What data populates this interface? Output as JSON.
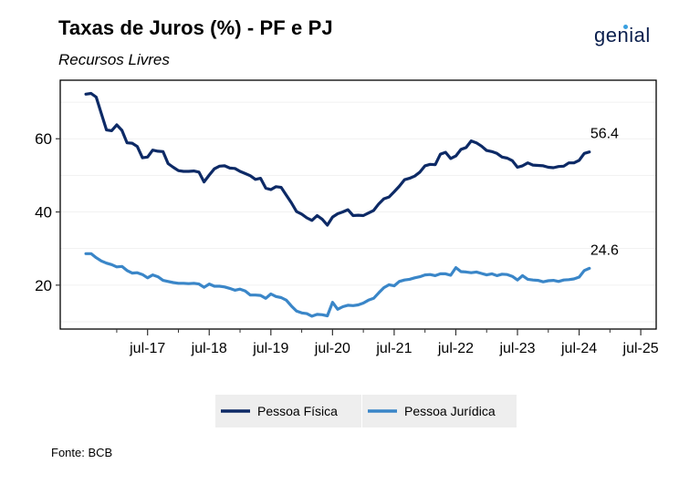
{
  "header": {
    "title": "Taxas de Juros (%) - PF e PJ",
    "subtitle": "Recursos Livres",
    "logo_text": "genial"
  },
  "footer": {
    "source": "Fonte: BCB"
  },
  "chart_data": {
    "type": "line",
    "title": "Taxas de Juros (%) - PF e PJ",
    "subtitle": "Recursos Livres",
    "xlabel": "",
    "ylabel": "",
    "x_tick_labels": [
      "jul-17",
      "jul-18",
      "jul-19",
      "jul-20",
      "jul-21",
      "jul-22",
      "jul-23",
      "jul-24",
      "jul-25"
    ],
    "y_tick_labels": [
      "20",
      "40",
      "60"
    ],
    "ylim": [
      8,
      76
    ],
    "xlim": [
      "2016-02",
      "2025-10"
    ],
    "grid": "horizontal, light",
    "legend": "bottom",
    "end_labels": [
      "56.4",
      "24.6"
    ],
    "series": [
      {
        "name": "Pessoa Física",
        "color": "#0d2a66",
        "points": [
          [
            "2016-07",
            72.2
          ],
          [
            "2016-08",
            72.4
          ],
          [
            "2016-09",
            71.4
          ],
          [
            "2016-10",
            66.9
          ],
          [
            "2016-11",
            62.4
          ],
          [
            "2016-12",
            62.2
          ],
          [
            "2017-01",
            63.8
          ],
          [
            "2017-02",
            62.3
          ],
          [
            "2017-03",
            58.9
          ],
          [
            "2017-04",
            58.8
          ],
          [
            "2017-05",
            57.9
          ],
          [
            "2017-06",
            54.8
          ],
          [
            "2017-07",
            55.0
          ],
          [
            "2017-08",
            56.9
          ],
          [
            "2017-09",
            56.6
          ],
          [
            "2017-10",
            56.5
          ],
          [
            "2017-11",
            53.2
          ],
          [
            "2017-12",
            52.2
          ],
          [
            "2018-01",
            51.3
          ],
          [
            "2018-02",
            51.1
          ],
          [
            "2018-03",
            51.1
          ],
          [
            "2018-04",
            51.2
          ],
          [
            "2018-05",
            50.9
          ],
          [
            "2018-06",
            48.2
          ],
          [
            "2018-07",
            50.1
          ],
          [
            "2018-08",
            51.8
          ],
          [
            "2018-09",
            52.5
          ],
          [
            "2018-10",
            52.6
          ],
          [
            "2018-11",
            52.0
          ],
          [
            "2018-12",
            51.9
          ],
          [
            "2019-01",
            51.1
          ],
          [
            "2019-02",
            50.5
          ],
          [
            "2019-03",
            49.9
          ],
          [
            "2019-04",
            48.9
          ],
          [
            "2019-05",
            49.2
          ],
          [
            "2019-06",
            46.5
          ],
          [
            "2019-07",
            46.1
          ],
          [
            "2019-08",
            46.9
          ],
          [
            "2019-09",
            46.7
          ],
          [
            "2019-10",
            44.6
          ],
          [
            "2019-11",
            42.5
          ],
          [
            "2019-12",
            40.1
          ],
          [
            "2020-01",
            39.4
          ],
          [
            "2020-02",
            38.4
          ],
          [
            "2020-03",
            37.7
          ],
          [
            "2020-04",
            39.0
          ],
          [
            "2020-05",
            38.0
          ],
          [
            "2020-06",
            36.4
          ],
          [
            "2020-07",
            38.6
          ],
          [
            "2020-08",
            39.5
          ],
          [
            "2020-09",
            40.0
          ],
          [
            "2020-10",
            40.6
          ],
          [
            "2020-11",
            39.0
          ],
          [
            "2020-12",
            39.1
          ],
          [
            "2021-01",
            39.0
          ],
          [
            "2021-02",
            39.7
          ],
          [
            "2021-03",
            40.4
          ],
          [
            "2021-04",
            42.2
          ],
          [
            "2021-05",
            43.6
          ],
          [
            "2021-06",
            44.1
          ],
          [
            "2021-07",
            45.5
          ],
          [
            "2021-08",
            47.0
          ],
          [
            "2021-09",
            48.8
          ],
          [
            "2021-10",
            49.2
          ],
          [
            "2021-11",
            49.8
          ],
          [
            "2021-12",
            50.9
          ],
          [
            "2022-01",
            52.6
          ],
          [
            "2022-02",
            53.0
          ],
          [
            "2022-03",
            52.9
          ],
          [
            "2022-04",
            55.8
          ],
          [
            "2022-05",
            56.3
          ],
          [
            "2022-06",
            54.6
          ],
          [
            "2022-07",
            55.3
          ],
          [
            "2022-08",
            57.1
          ],
          [
            "2022-09",
            57.6
          ],
          [
            "2022-10",
            59.4
          ],
          [
            "2022-11",
            58.9
          ],
          [
            "2022-12",
            58.0
          ],
          [
            "2023-01",
            56.8
          ],
          [
            "2023-02",
            56.5
          ],
          [
            "2023-03",
            56.0
          ],
          [
            "2023-04",
            55.0
          ],
          [
            "2023-05",
            54.7
          ],
          [
            "2023-06",
            54.0
          ],
          [
            "2023-07",
            52.2
          ],
          [
            "2023-08",
            52.6
          ],
          [
            "2023-09",
            53.4
          ],
          [
            "2023-10",
            52.8
          ],
          [
            "2023-11",
            52.7
          ],
          [
            "2023-12",
            52.6
          ],
          [
            "2024-01",
            52.2
          ],
          [
            "2024-02",
            52.1
          ],
          [
            "2024-03",
            52.4
          ],
          [
            "2024-04",
            52.5
          ],
          [
            "2024-05",
            53.4
          ],
          [
            "2024-06",
            53.4
          ],
          [
            "2024-07",
            54.1
          ],
          [
            "2024-08",
            56.0
          ],
          [
            "2024-09",
            56.4
          ]
        ]
      },
      {
        "name": "Pessoa Jurídica",
        "color": "#3a86c8",
        "points": [
          [
            "2016-07",
            28.6
          ],
          [
            "2016-08",
            28.6
          ],
          [
            "2016-09",
            27.5
          ],
          [
            "2016-10",
            26.6
          ],
          [
            "2016-11",
            26.0
          ],
          [
            "2016-12",
            25.6
          ],
          [
            "2017-01",
            25.0
          ],
          [
            "2017-02",
            25.1
          ],
          [
            "2017-03",
            24.0
          ],
          [
            "2017-04",
            23.3
          ],
          [
            "2017-05",
            23.4
          ],
          [
            "2017-06",
            22.9
          ],
          [
            "2017-07",
            22.0
          ],
          [
            "2017-08",
            22.8
          ],
          [
            "2017-09",
            22.3
          ],
          [
            "2017-10",
            21.3
          ],
          [
            "2017-11",
            21.0
          ],
          [
            "2017-12",
            20.7
          ],
          [
            "2018-01",
            20.5
          ],
          [
            "2018-02",
            20.5
          ],
          [
            "2018-03",
            20.4
          ],
          [
            "2018-04",
            20.5
          ],
          [
            "2018-05",
            20.3
          ],
          [
            "2018-06",
            19.4
          ],
          [
            "2018-07",
            20.3
          ],
          [
            "2018-08",
            19.7
          ],
          [
            "2018-09",
            19.7
          ],
          [
            "2018-10",
            19.5
          ],
          [
            "2018-11",
            19.1
          ],
          [
            "2018-12",
            18.6
          ],
          [
            "2019-01",
            18.9
          ],
          [
            "2019-02",
            18.4
          ],
          [
            "2019-03",
            17.3
          ],
          [
            "2019-04",
            17.3
          ],
          [
            "2019-05",
            17.2
          ],
          [
            "2019-06",
            16.4
          ],
          [
            "2019-07",
            17.6
          ],
          [
            "2019-08",
            16.9
          ],
          [
            "2019-09",
            16.6
          ],
          [
            "2019-10",
            15.9
          ],
          [
            "2019-11",
            14.3
          ],
          [
            "2019-12",
            12.9
          ],
          [
            "2020-01",
            12.4
          ],
          [
            "2020-02",
            12.2
          ],
          [
            "2020-03",
            11.5
          ],
          [
            "2020-04",
            12.0
          ],
          [
            "2020-05",
            11.9
          ],
          [
            "2020-06",
            11.6
          ],
          [
            "2020-07",
            15.3
          ],
          [
            "2020-08",
            13.4
          ],
          [
            "2020-09",
            14.1
          ],
          [
            "2020-10",
            14.5
          ],
          [
            "2020-11",
            14.4
          ],
          [
            "2020-12",
            14.6
          ],
          [
            "2021-01",
            15.1
          ],
          [
            "2021-02",
            15.9
          ],
          [
            "2021-03",
            16.4
          ],
          [
            "2021-04",
            17.9
          ],
          [
            "2021-05",
            19.3
          ],
          [
            "2021-06",
            20.1
          ],
          [
            "2021-07",
            19.8
          ],
          [
            "2021-08",
            21.0
          ],
          [
            "2021-09",
            21.4
          ],
          [
            "2021-10",
            21.6
          ],
          [
            "2021-11",
            22.0
          ],
          [
            "2021-12",
            22.3
          ],
          [
            "2022-01",
            22.8
          ],
          [
            "2022-02",
            22.9
          ],
          [
            "2022-03",
            22.6
          ],
          [
            "2022-04",
            23.1
          ],
          [
            "2022-05",
            23.1
          ],
          [
            "2022-06",
            22.7
          ],
          [
            "2022-07",
            24.8
          ],
          [
            "2022-08",
            23.7
          ],
          [
            "2022-09",
            23.6
          ],
          [
            "2022-10",
            23.4
          ],
          [
            "2022-11",
            23.6
          ],
          [
            "2022-12",
            23.2
          ],
          [
            "2023-01",
            22.8
          ],
          [
            "2023-02",
            23.1
          ],
          [
            "2023-03",
            22.6
          ],
          [
            "2023-04",
            23.0
          ],
          [
            "2023-05",
            22.9
          ],
          [
            "2023-06",
            22.4
          ],
          [
            "2023-07",
            21.4
          ],
          [
            "2023-08",
            22.6
          ],
          [
            "2023-09",
            21.6
          ],
          [
            "2023-10",
            21.4
          ],
          [
            "2023-11",
            21.3
          ],
          [
            "2023-12",
            20.9
          ],
          [
            "2024-01",
            21.2
          ],
          [
            "2024-02",
            21.3
          ],
          [
            "2024-03",
            21.0
          ],
          [
            "2024-04",
            21.4
          ],
          [
            "2024-05",
            21.5
          ],
          [
            "2024-06",
            21.7
          ],
          [
            "2024-07",
            22.2
          ],
          [
            "2024-08",
            24.0
          ],
          [
            "2024-09",
            24.6
          ]
        ]
      }
    ]
  }
}
